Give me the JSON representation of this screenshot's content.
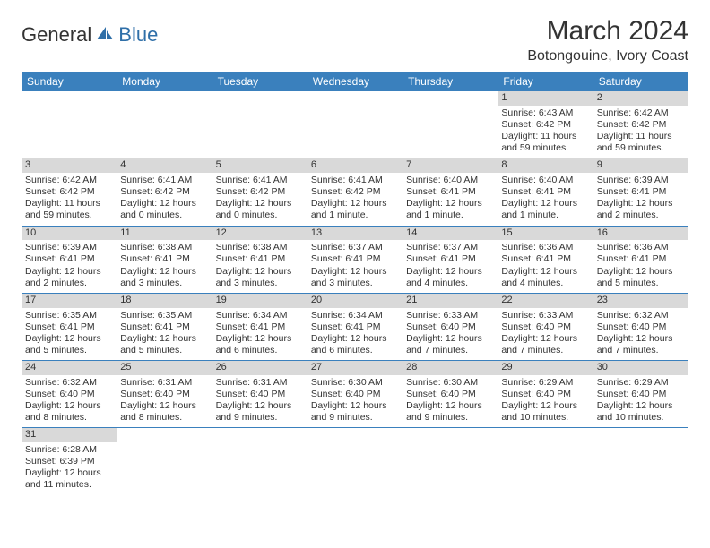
{
  "logo": {
    "part1": "General",
    "part2": "Blue"
  },
  "title": "March 2024",
  "location": "Botongouine, Ivory Coast",
  "colors": {
    "header_bg": "#3a80bd",
    "header_text": "#ffffff",
    "daynum_bg": "#d9d9d9",
    "row_border": "#3a80bd",
    "text": "#333333",
    "logo_blue": "#2f6fa8"
  },
  "weekdays": [
    "Sunday",
    "Monday",
    "Tuesday",
    "Wednesday",
    "Thursday",
    "Friday",
    "Saturday"
  ],
  "weeks": [
    [
      null,
      null,
      null,
      null,
      null,
      {
        "n": "1",
        "sr": "Sunrise: 6:43 AM",
        "ss": "Sunset: 6:42 PM",
        "d1": "Daylight: 11 hours",
        "d2": "and 59 minutes."
      },
      {
        "n": "2",
        "sr": "Sunrise: 6:42 AM",
        "ss": "Sunset: 6:42 PM",
        "d1": "Daylight: 11 hours",
        "d2": "and 59 minutes."
      }
    ],
    [
      {
        "n": "3",
        "sr": "Sunrise: 6:42 AM",
        "ss": "Sunset: 6:42 PM",
        "d1": "Daylight: 11 hours",
        "d2": "and 59 minutes."
      },
      {
        "n": "4",
        "sr": "Sunrise: 6:41 AM",
        "ss": "Sunset: 6:42 PM",
        "d1": "Daylight: 12 hours",
        "d2": "and 0 minutes."
      },
      {
        "n": "5",
        "sr": "Sunrise: 6:41 AM",
        "ss": "Sunset: 6:42 PM",
        "d1": "Daylight: 12 hours",
        "d2": "and 0 minutes."
      },
      {
        "n": "6",
        "sr": "Sunrise: 6:41 AM",
        "ss": "Sunset: 6:42 PM",
        "d1": "Daylight: 12 hours",
        "d2": "and 1 minute."
      },
      {
        "n": "7",
        "sr": "Sunrise: 6:40 AM",
        "ss": "Sunset: 6:41 PM",
        "d1": "Daylight: 12 hours",
        "d2": "and 1 minute."
      },
      {
        "n": "8",
        "sr": "Sunrise: 6:40 AM",
        "ss": "Sunset: 6:41 PM",
        "d1": "Daylight: 12 hours",
        "d2": "and 1 minute."
      },
      {
        "n": "9",
        "sr": "Sunrise: 6:39 AM",
        "ss": "Sunset: 6:41 PM",
        "d1": "Daylight: 12 hours",
        "d2": "and 2 minutes."
      }
    ],
    [
      {
        "n": "10",
        "sr": "Sunrise: 6:39 AM",
        "ss": "Sunset: 6:41 PM",
        "d1": "Daylight: 12 hours",
        "d2": "and 2 minutes."
      },
      {
        "n": "11",
        "sr": "Sunrise: 6:38 AM",
        "ss": "Sunset: 6:41 PM",
        "d1": "Daylight: 12 hours",
        "d2": "and 3 minutes."
      },
      {
        "n": "12",
        "sr": "Sunrise: 6:38 AM",
        "ss": "Sunset: 6:41 PM",
        "d1": "Daylight: 12 hours",
        "d2": "and 3 minutes."
      },
      {
        "n": "13",
        "sr": "Sunrise: 6:37 AM",
        "ss": "Sunset: 6:41 PM",
        "d1": "Daylight: 12 hours",
        "d2": "and 3 minutes."
      },
      {
        "n": "14",
        "sr": "Sunrise: 6:37 AM",
        "ss": "Sunset: 6:41 PM",
        "d1": "Daylight: 12 hours",
        "d2": "and 4 minutes."
      },
      {
        "n": "15",
        "sr": "Sunrise: 6:36 AM",
        "ss": "Sunset: 6:41 PM",
        "d1": "Daylight: 12 hours",
        "d2": "and 4 minutes."
      },
      {
        "n": "16",
        "sr": "Sunrise: 6:36 AM",
        "ss": "Sunset: 6:41 PM",
        "d1": "Daylight: 12 hours",
        "d2": "and 5 minutes."
      }
    ],
    [
      {
        "n": "17",
        "sr": "Sunrise: 6:35 AM",
        "ss": "Sunset: 6:41 PM",
        "d1": "Daylight: 12 hours",
        "d2": "and 5 minutes."
      },
      {
        "n": "18",
        "sr": "Sunrise: 6:35 AM",
        "ss": "Sunset: 6:41 PM",
        "d1": "Daylight: 12 hours",
        "d2": "and 5 minutes."
      },
      {
        "n": "19",
        "sr": "Sunrise: 6:34 AM",
        "ss": "Sunset: 6:41 PM",
        "d1": "Daylight: 12 hours",
        "d2": "and 6 minutes."
      },
      {
        "n": "20",
        "sr": "Sunrise: 6:34 AM",
        "ss": "Sunset: 6:41 PM",
        "d1": "Daylight: 12 hours",
        "d2": "and 6 minutes."
      },
      {
        "n": "21",
        "sr": "Sunrise: 6:33 AM",
        "ss": "Sunset: 6:40 PM",
        "d1": "Daylight: 12 hours",
        "d2": "and 7 minutes."
      },
      {
        "n": "22",
        "sr": "Sunrise: 6:33 AM",
        "ss": "Sunset: 6:40 PM",
        "d1": "Daylight: 12 hours",
        "d2": "and 7 minutes."
      },
      {
        "n": "23",
        "sr": "Sunrise: 6:32 AM",
        "ss": "Sunset: 6:40 PM",
        "d1": "Daylight: 12 hours",
        "d2": "and 7 minutes."
      }
    ],
    [
      {
        "n": "24",
        "sr": "Sunrise: 6:32 AM",
        "ss": "Sunset: 6:40 PM",
        "d1": "Daylight: 12 hours",
        "d2": "and 8 minutes."
      },
      {
        "n": "25",
        "sr": "Sunrise: 6:31 AM",
        "ss": "Sunset: 6:40 PM",
        "d1": "Daylight: 12 hours",
        "d2": "and 8 minutes."
      },
      {
        "n": "26",
        "sr": "Sunrise: 6:31 AM",
        "ss": "Sunset: 6:40 PM",
        "d1": "Daylight: 12 hours",
        "d2": "and 9 minutes."
      },
      {
        "n": "27",
        "sr": "Sunrise: 6:30 AM",
        "ss": "Sunset: 6:40 PM",
        "d1": "Daylight: 12 hours",
        "d2": "and 9 minutes."
      },
      {
        "n": "28",
        "sr": "Sunrise: 6:30 AM",
        "ss": "Sunset: 6:40 PM",
        "d1": "Daylight: 12 hours",
        "d2": "and 9 minutes."
      },
      {
        "n": "29",
        "sr": "Sunrise: 6:29 AM",
        "ss": "Sunset: 6:40 PM",
        "d1": "Daylight: 12 hours",
        "d2": "and 10 minutes."
      },
      {
        "n": "30",
        "sr": "Sunrise: 6:29 AM",
        "ss": "Sunset: 6:40 PM",
        "d1": "Daylight: 12 hours",
        "d2": "and 10 minutes."
      }
    ],
    [
      {
        "n": "31",
        "sr": "Sunrise: 6:28 AM",
        "ss": "Sunset: 6:39 PM",
        "d1": "Daylight: 12 hours",
        "d2": "and 11 minutes."
      },
      null,
      null,
      null,
      null,
      null,
      null
    ]
  ]
}
